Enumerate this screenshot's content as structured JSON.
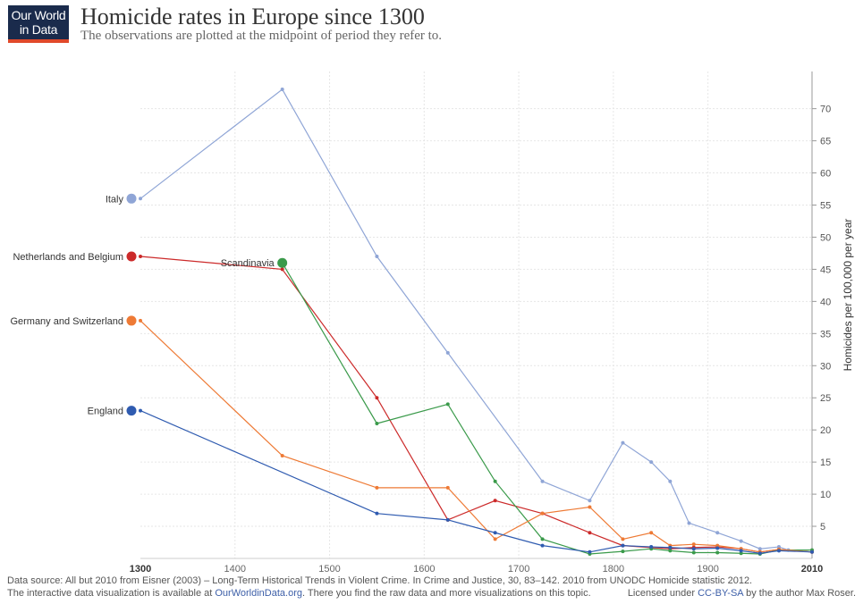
{
  "header": {
    "logo_line1": "Our World",
    "logo_line2": "in Data",
    "title": "Homicide rates in Europe since 1300",
    "subtitle": "The observations are plotted at the midpoint of period they refer to."
  },
  "footer": {
    "source": "Data source: All but 2010 from Eisner (2003) – Long-Term Historical Trends in Violent Crime. In Crime and Justice, 30, 83–142. 2010 from UNODC Homicide statistic 2012.",
    "interactive_prefix": "The interactive data visualization is available at ",
    "interactive_link": "OurWorldinData.org",
    "interactive_suffix": ". There you find the raw data and more visualizations on this topic.",
    "licence_prefix": "Licensed under ",
    "licence_link": "CC-BY-SA",
    "licence_suffix": " by the author Max Roser."
  },
  "chart_data": {
    "type": "line",
    "title": "Homicide rates in Europe since 1300",
    "ylabel": "Homicides per 100,000 per year",
    "xlabel": "",
    "xlim": [
      1300,
      2010
    ],
    "ylim": [
      0,
      72
    ],
    "x_ticks": [
      1300,
      1400,
      1500,
      1600,
      1700,
      1800,
      1900,
      2010
    ],
    "y_ticks": [
      5,
      10,
      15,
      20,
      25,
      30,
      35,
      40,
      45,
      50,
      55,
      60,
      65,
      70
    ],
    "grid": true,
    "series": [
      {
        "name": "Italy",
        "color": "#8fa5d6",
        "x": [
          1300,
          1450,
          1550,
          1625,
          1725,
          1775,
          1810,
          1840,
          1860,
          1880,
          1910,
          1935,
          1955,
          1975,
          1985,
          2010
        ],
        "y": [
          56,
          73,
          47,
          32,
          12,
          9,
          18,
          15,
          12,
          5.5,
          4,
          2.7,
          1.5,
          1.8,
          1.3,
          1
        ]
      },
      {
        "name": "Netherlands and Belgium",
        "color": "#cc2a2a",
        "x": [
          1300,
          1450,
          1550,
          1625,
          1675,
          1725,
          1775,
          1810,
          1860,
          1885,
          1910,
          1935,
          1955,
          1975,
          2010
        ],
        "y": [
          47,
          45,
          25,
          6,
          9,
          7,
          4,
          2,
          1.5,
          1.7,
          1.8,
          1.5,
          1,
          1.4,
          1
        ]
      },
      {
        "name": "Scandinavia",
        "color": "#3a9a4a",
        "x": [
          1450,
          1550,
          1625,
          1675,
          1725,
          1775,
          1810,
          1840,
          1860,
          1885,
          1910,
          1935,
          1955,
          1975,
          2010
        ],
        "y": [
          46,
          21,
          24,
          12,
          3,
          0.7,
          1.1,
          1.5,
          1.2,
          0.9,
          0.9,
          0.8,
          0.7,
          1.3,
          1.3
        ]
      },
      {
        "name": "Germany and Switzerland",
        "color": "#ee7a35",
        "x": [
          1300,
          1450,
          1550,
          1625,
          1675,
          1725,
          1775,
          1810,
          1840,
          1860,
          1885,
          1910,
          1935,
          1955,
          1975,
          2010
        ],
        "y": [
          37,
          16,
          11,
          11,
          3,
          7,
          8,
          3,
          4,
          2,
          2.2,
          2,
          1.5,
          1,
          1.4,
          1
        ]
      },
      {
        "name": "England",
        "color": "#2f5bb0",
        "x": [
          1300,
          1550,
          1625,
          1675,
          1725,
          1775,
          1810,
          1840,
          1860,
          1885,
          1910,
          1935,
          1955,
          1975,
          2010
        ],
        "y": [
          23,
          7,
          6,
          4,
          2,
          1,
          2,
          1.8,
          1.7,
          1.5,
          1.6,
          1.2,
          0.8,
          1.2,
          1
        ]
      }
    ]
  }
}
